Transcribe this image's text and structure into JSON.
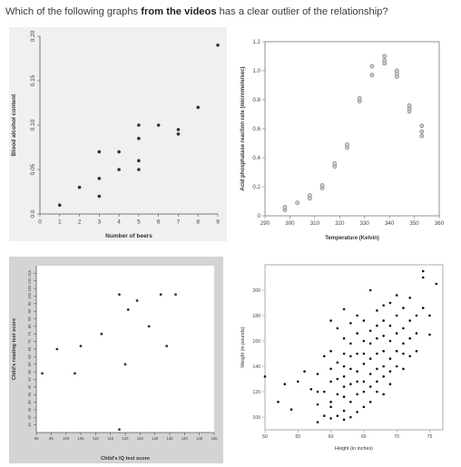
{
  "question": {
    "prefix": "Which of the following graphs ",
    "emphasis": "from the videos",
    "suffix": " has a clear outlier of the relationship?"
  },
  "chart_data": [
    {
      "type": "scatter",
      "xlabel": "Number of beers",
      "ylabel": "Blood alcohol content",
      "xlim": [
        0,
        9
      ],
      "ylim": [
        0,
        0.2
      ],
      "xticks": [
        "0",
        "1",
        "2",
        "3",
        "4",
        "5",
        "6",
        "7",
        "8",
        "9"
      ],
      "yticks": [
        "0.0",
        "0.05",
        "0.10",
        "0.15",
        "0.20"
      ],
      "points": [
        [
          1,
          0.01
        ],
        [
          2,
          0.03
        ],
        [
          3,
          0.02
        ],
        [
          3,
          0.04
        ],
        [
          3,
          0.07
        ],
        [
          4,
          0.05
        ],
        [
          4,
          0.07
        ],
        [
          5,
          0.05
        ],
        [
          5,
          0.06
        ],
        [
          5,
          0.085
        ],
        [
          5,
          0.1
        ],
        [
          6,
          0.1
        ],
        [
          7,
          0.09
        ],
        [
          7,
          0.095
        ],
        [
          8,
          0.12
        ],
        [
          9,
          0.19
        ]
      ]
    },
    {
      "type": "scatter",
      "xlabel": "Temperature (Kelvin)",
      "ylabel": "Acid phosphatase reaction rate (micromole/sec)",
      "xlim": [
        290,
        360
      ],
      "ylim": [
        0,
        1.2
      ],
      "xticks": [
        "290",
        "300",
        "310",
        "320",
        "330",
        "340",
        "350",
        "360"
      ],
      "yticks": [
        "0",
        "0.2",
        "0.4",
        "0.6",
        "0.8",
        "1.0",
        "1.2"
      ],
      "points": [
        [
          298,
          0.04
        ],
        [
          298,
          0.06
        ],
        [
          303,
          0.09
        ],
        [
          308,
          0.12
        ],
        [
          308,
          0.14
        ],
        [
          313,
          0.19
        ],
        [
          313,
          0.21
        ],
        [
          318,
          0.34
        ],
        [
          318,
          0.36
        ],
        [
          323,
          0.47
        ],
        [
          323,
          0.49
        ],
        [
          328,
          0.79
        ],
        [
          328,
          0.81
        ],
        [
          333,
          0.97
        ],
        [
          333,
          1.03
        ],
        [
          338,
          1.05
        ],
        [
          338,
          1.07
        ],
        [
          338,
          1.1
        ],
        [
          343,
          0.96
        ],
        [
          343,
          0.98
        ],
        [
          343,
          1.0
        ],
        [
          348,
          0.72
        ],
        [
          348,
          0.74
        ],
        [
          348,
          0.76
        ],
        [
          353,
          0.55
        ],
        [
          353,
          0.58
        ],
        [
          353,
          0.62
        ]
      ]
    },
    {
      "type": "scatter",
      "xlabel": "Child's IQ test score",
      "ylabel": "Child's reading test score",
      "xlim": [
        90,
        150
      ],
      "ylim": [
        10,
        120
      ],
      "xticks": [
        "90",
        "95",
        "100",
        "105",
        "110",
        "115",
        "120",
        "125",
        "130",
        "135",
        "140",
        "145",
        "150"
      ],
      "yticks": [
        "15",
        "20",
        "25",
        "30",
        "35",
        "40",
        "45",
        "50",
        "55",
        "60",
        "65",
        "70",
        "75",
        "80",
        "85",
        "90",
        "95",
        "100",
        "105",
        "110",
        "115"
      ],
      "points": [
        [
          92,
          49
        ],
        [
          97,
          65
        ],
        [
          103,
          49
        ],
        [
          105,
          67
        ],
        [
          112,
          75
        ],
        [
          118,
          101
        ],
        [
          120,
          55
        ],
        [
          121,
          91
        ],
        [
          124,
          97
        ],
        [
          128,
          80
        ],
        [
          132,
          101
        ],
        [
          134,
          67
        ],
        [
          137,
          101
        ],
        [
          118,
          12
        ]
      ]
    },
    {
      "type": "scatter",
      "xlabel": "Height (in inches)",
      "ylabel": "Weight (in pounds)",
      "xlim": [
        50,
        77
      ],
      "ylim": [
        90,
        220
      ],
      "xticks": [
        "50",
        "55",
        "60",
        "65",
        "70",
        "75"
      ],
      "yticks": [
        "100",
        "120",
        "140",
        "160",
        "180",
        "200"
      ],
      "points": [
        [
          50,
          132
        ],
        [
          52,
          112
        ],
        [
          53,
          126
        ],
        [
          54,
          106
        ],
        [
          55,
          128
        ],
        [
          56,
          136
        ],
        [
          57,
          122
        ],
        [
          58,
          96
        ],
        [
          58,
          110
        ],
        [
          58,
          120
        ],
        [
          58,
          134
        ],
        [
          59,
          101
        ],
        [
          59,
          120
        ],
        [
          59,
          148
        ],
        [
          60,
          99
        ],
        [
          60,
          108
        ],
        [
          60,
          112
        ],
        [
          60,
          128
        ],
        [
          60,
          138
        ],
        [
          60,
          152
        ],
        [
          60,
          176
        ],
        [
          61,
          101
        ],
        [
          61,
          118
        ],
        [
          61,
          130
        ],
        [
          61,
          143
        ],
        [
          61,
          170
        ],
        [
          62,
          98
        ],
        [
          62,
          105
        ],
        [
          62,
          116
        ],
        [
          62,
          124
        ],
        [
          62,
          132
        ],
        [
          62,
          140
        ],
        [
          62,
          150
        ],
        [
          62,
          162
        ],
        [
          62,
          185
        ],
        [
          63,
          100
        ],
        [
          63,
          112
        ],
        [
          63,
          126
        ],
        [
          63,
          138
        ],
        [
          63,
          148
        ],
        [
          63,
          158
        ],
        [
          63,
          174
        ],
        [
          64,
          104
        ],
        [
          64,
          118
        ],
        [
          64,
          128
        ],
        [
          64,
          136
        ],
        [
          64,
          150
        ],
        [
          64,
          166
        ],
        [
          64,
          180
        ],
        [
          65,
          108
        ],
        [
          65,
          120
        ],
        [
          65,
          128
        ],
        [
          65,
          142
        ],
        [
          65,
          150
        ],
        [
          65,
          160
        ],
        [
          65,
          176
        ],
        [
          66,
          112
        ],
        [
          66,
          124
        ],
        [
          66,
          134
        ],
        [
          66,
          146
        ],
        [
          66,
          158
        ],
        [
          66,
          168
        ],
        [
          66,
          200
        ],
        [
          67,
          120
        ],
        [
          67,
          128
        ],
        [
          67,
          138
        ],
        [
          67,
          150
        ],
        [
          67,
          162
        ],
        [
          67,
          172
        ],
        [
          67,
          184
        ],
        [
          68,
          118
        ],
        [
          68,
          132
        ],
        [
          68,
          140
        ],
        [
          68,
          152
        ],
        [
          68,
          164
        ],
        [
          68,
          176
        ],
        [
          68,
          188
        ],
        [
          69,
          126
        ],
        [
          69,
          136
        ],
        [
          69,
          146
        ],
        [
          69,
          160
        ],
        [
          69,
          172
        ],
        [
          69,
          190
        ],
        [
          70,
          140
        ],
        [
          70,
          152
        ],
        [
          70,
          166
        ],
        [
          70,
          180
        ],
        [
          70,
          196
        ],
        [
          71,
          138
        ],
        [
          71,
          150
        ],
        [
          71,
          158
        ],
        [
          71,
          170
        ],
        [
          71,
          186
        ],
        [
          72,
          148
        ],
        [
          72,
          162
        ],
        [
          72,
          176
        ],
        [
          72,
          194
        ],
        [
          73,
          152
        ],
        [
          73,
          166
        ],
        [
          73,
          180
        ],
        [
          74,
          186
        ],
        [
          74,
          210
        ],
        [
          74,
          215
        ],
        [
          75,
          165
        ],
        [
          75,
          180
        ],
        [
          76,
          205
        ]
      ]
    }
  ]
}
